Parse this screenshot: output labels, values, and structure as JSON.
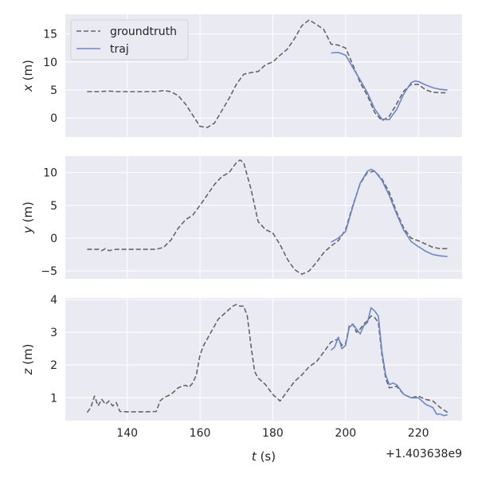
{
  "chart_data": {
    "type": "line",
    "xlabel_var": "t",
    "xlabel_unit": " (s)",
    "x_offset_text": "+1.403638e9",
    "xlim": [
      123,
      232
    ],
    "xticks": [
      140,
      160,
      180,
      200,
      220
    ],
    "xtick_labels": [
      "140",
      "160",
      "180",
      "200",
      "220"
    ],
    "grid": true,
    "legend": {
      "placement": "top-left",
      "panel": 0,
      "entries": [
        "groundtruth",
        "traj"
      ]
    },
    "series_styles": [
      {
        "name": "groundtruth",
        "color": "#666666",
        "dash": "6,3"
      },
      {
        "name": "traj",
        "color": "#6a88c8",
        "dash": ""
      }
    ],
    "panels": [
      {
        "ylabel_var": "x",
        "ylabel_unit": " (m)",
        "ylim": [
          -3.4,
          18.5
        ],
        "yticks": [
          0,
          5,
          10,
          15
        ],
        "ytick_labels": [
          "0",
          "5",
          "10",
          "15"
        ],
        "series": [
          {
            "name": "groundtruth",
            "x": [
              129,
              132,
              135,
              137,
              140,
              145,
              148,
              150,
              152,
              154,
              156,
              158,
              160,
              162,
              164,
              166,
              168,
              170,
              172,
              174,
              176,
              178,
              180,
              182,
              184,
              186,
              188,
              190,
              192,
              194,
              196,
              198,
              200,
              202,
              204,
              206,
              208,
              210,
              212,
              214,
              216,
              218,
              220,
              222,
              224,
              226,
              228
            ],
            "y": [
              4.7,
              4.7,
              4.8,
              4.7,
              4.7,
              4.7,
              4.7,
              4.9,
              4.7,
              4.0,
              2.5,
              0.5,
              -1.5,
              -1.7,
              -0.9,
              1.3,
              3.5,
              6.0,
              7.8,
              8.1,
              8.3,
              9.5,
              10.0,
              11.2,
              12.3,
              14.2,
              16.5,
              17.5,
              16.7,
              15.8,
              13.2,
              13.0,
              12.5,
              9.5,
              6.3,
              4.0,
              1.0,
              -0.5,
              0.3,
              2.5,
              4.8,
              6.0,
              6.0,
              5.0,
              4.6,
              4.5,
              4.5
            ]
          },
          {
            "name": "traj",
            "x": [
              196,
              198,
              200,
              202,
              204,
              206,
              208,
              210,
              212,
              214,
              216,
              218,
              219,
              220,
              222,
              224,
              226,
              228
            ],
            "y": [
              11.6,
              11.7,
              11.2,
              9.0,
              6.8,
              4.5,
              1.6,
              -0.2,
              -0.3,
              1.5,
              4.3,
              6.3,
              6.6,
              6.5,
              5.9,
              5.4,
              5.1,
              5.0
            ]
          }
        ]
      },
      {
        "ylabel_var": "y",
        "ylabel_unit": " (m)",
        "ylim": [
          -6.2,
          12.5
        ],
        "yticks": [
          -5,
          0,
          5,
          10
        ],
        "ytick_labels": [
          "−5",
          "0",
          "5",
          "10"
        ],
        "series": [
          {
            "name": "groundtruth",
            "x": [
              129,
              132,
              133,
              134,
              135,
              137,
              140,
              145,
              148,
              150,
              152,
              154,
              156,
              158,
              160,
              162,
              164,
              166,
              168,
              170,
              171,
              172,
              174,
              176,
              178,
              180,
              182,
              184,
              186,
              188,
              190,
              192,
              194,
              196,
              198,
              200,
              202,
              204,
              206,
              208,
              210,
              212,
              214,
              216,
              218,
              220,
              222,
              224,
              226,
              228
            ],
            "y": [
              -1.7,
              -1.7,
              -1.9,
              -1.6,
              -1.9,
              -1.7,
              -1.7,
              -1.7,
              -1.7,
              -1.4,
              -0.3,
              1.5,
              2.8,
              3.5,
              5.0,
              6.6,
              8.2,
              9.4,
              10.0,
              11.5,
              11.9,
              11.5,
              7.5,
              2.5,
              1.3,
              0.8,
              -1.0,
              -3.2,
              -4.8,
              -5.5,
              -5.0,
              -3.7,
              -2.2,
              -1.2,
              -0.4,
              1.3,
              5.0,
              8.3,
              10.0,
              10.2,
              9.0,
              7.0,
              4.0,
              1.5,
              0.0,
              -0.4,
              -0.9,
              -1.4,
              -1.6,
              -1.6
            ]
          },
          {
            "name": "traj",
            "x": [
              196,
              198,
              200,
              202,
              204,
              206,
              207,
              208,
              210,
              212,
              214,
              216,
              218,
              220,
              222,
              224,
              226,
              228
            ],
            "y": [
              -0.6,
              0.0,
              1.0,
              4.8,
              8.4,
              10.2,
              10.5,
              10.2,
              8.8,
              6.5,
              3.7,
              1.2,
              -0.5,
              -1.3,
              -2.0,
              -2.5,
              -2.7,
              -2.8
            ]
          }
        ]
      },
      {
        "ylabel_var": "z",
        "ylabel_unit": " (m)",
        "ylim": [
          0.3,
          4.05
        ],
        "yticks": [
          1,
          2,
          3,
          4
        ],
        "ytick_labels": [
          "1",
          "2",
          "3",
          "4"
        ],
        "series": [
          {
            "name": "groundtruth",
            "x": [
              129,
              130,
              131,
              132,
              133,
              134,
              135,
              136,
              137,
              138,
              140,
              145,
              148,
              149,
              150,
              151,
              152,
              153,
              154,
              155,
              156,
              157,
              158,
              159,
              160,
              161,
              163,
              165,
              167,
              169,
              170,
              171,
              172,
              173,
              174,
              175,
              176,
              178,
              180,
              182,
              184,
              186,
              188,
              190,
              192,
              194,
              196,
              197,
              198,
              199,
              200,
              201,
              202,
              203,
              204,
              205,
              206,
              207,
              208,
              209,
              210,
              211,
              212,
              214,
              216,
              218,
              220,
              222,
              224,
              226,
              228
            ],
            "y": [
              0.55,
              0.7,
              1.05,
              0.75,
              0.95,
              0.8,
              0.9,
              0.75,
              0.85,
              0.58,
              0.57,
              0.57,
              0.58,
              0.9,
              1.0,
              1.05,
              1.1,
              1.2,
              1.3,
              1.35,
              1.38,
              1.32,
              1.45,
              1.7,
              2.3,
              2.6,
              3.0,
              3.4,
              3.6,
              3.8,
              3.85,
              3.8,
              3.8,
              3.5,
              2.6,
              1.8,
              1.6,
              1.4,
              1.1,
              0.9,
              1.2,
              1.5,
              1.7,
              1.95,
              2.1,
              2.4,
              2.7,
              2.75,
              2.8,
              2.6,
              2.65,
              3.2,
              3.25,
              3.0,
              3.1,
              3.25,
              3.35,
              3.5,
              3.45,
              3.3,
              2.3,
              1.6,
              1.3,
              1.35,
              1.1,
              1.0,
              1.05,
              0.95,
              0.9,
              0.7,
              0.55
            ]
          },
          {
            "name": "traj",
            "x": [
              196,
              197,
              198,
              199,
              200,
              201,
              202,
              203,
              204,
              205,
              206,
              207,
              208,
              209,
              210,
              211,
              212,
              213,
              214,
              216,
              218,
              220,
              222,
              224,
              225,
              226,
              227,
              228
            ],
            "y": [
              2.45,
              2.55,
              2.85,
              2.5,
              2.6,
              3.15,
              3.25,
              3.1,
              2.95,
              3.2,
              3.3,
              3.75,
              3.65,
              3.5,
              2.4,
              1.7,
              1.4,
              1.45,
              1.4,
              1.1,
              1.0,
              1.0,
              0.8,
              0.7,
              0.5,
              0.5,
              0.45,
              0.48
            ]
          }
        ]
      }
    ]
  }
}
